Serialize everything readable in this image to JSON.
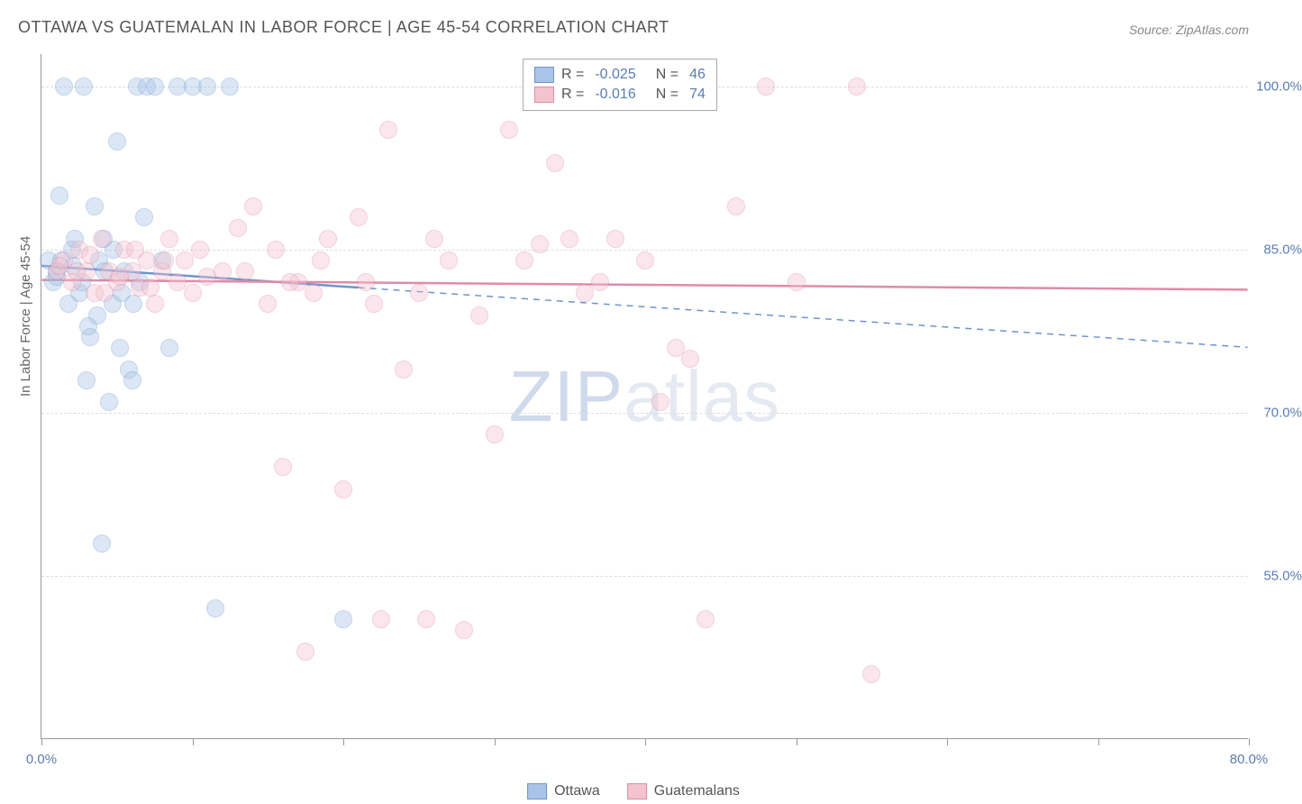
{
  "title": "OTTAWA VS GUATEMALAN IN LABOR FORCE | AGE 45-54 CORRELATION CHART",
  "source": "Source: ZipAtlas.com",
  "y_axis_label": "In Labor Force | Age 45-54",
  "watermark": "ZIPatlas",
  "chart": {
    "type": "scatter",
    "background_color": "#ffffff",
    "grid_color": "#dddddd",
    "axis_color": "#999999",
    "text_color": "#666666",
    "value_color": "#5b7db1",
    "title_fontsize": 18,
    "label_fontsize": 15,
    "legend_fontsize": 16,
    "marker_radius": 10,
    "marker_opacity": 0.4,
    "x_range": [
      0,
      80
    ],
    "y_range": [
      40,
      103
    ],
    "x_ticks": [
      0,
      10,
      20,
      30,
      40,
      50,
      60,
      70,
      80
    ],
    "x_tick_labels": {
      "0": "0.0%",
      "80": "80.0%"
    },
    "y_ticks": [
      55,
      70,
      85,
      100
    ],
    "y_tick_labels": {
      "55": "55.0%",
      "70": "70.0%",
      "85": "85.0%",
      "100": "100.0%"
    },
    "series": [
      {
        "name": "Ottawa",
        "color_fill": "#a9c4e8",
        "color_stroke": "#6d95cc",
        "R": "-0.025",
        "N": "46",
        "trend_solid": {
          "x1": 0,
          "y1": 83.5,
          "x2": 21,
          "y2": 81.5
        },
        "trend_dash": {
          "x1": 21,
          "y1": 81.5,
          "x2": 80,
          "y2": 76
        },
        "points": [
          [
            0.5,
            84
          ],
          [
            0.8,
            82
          ],
          [
            1,
            83
          ],
          [
            1.2,
            90
          ],
          [
            1.5,
            100
          ],
          [
            1.8,
            80
          ],
          [
            2,
            85
          ],
          [
            2.2,
            86
          ],
          [
            2.5,
            81
          ],
          [
            2.8,
            100
          ],
          [
            3,
            73
          ],
          [
            3.2,
            77
          ],
          [
            3.5,
            89
          ],
          [
            3.8,
            84
          ],
          [
            4,
            58
          ],
          [
            4.2,
            83
          ],
          [
            4.5,
            71
          ],
          [
            4.8,
            85
          ],
          [
            5,
            95
          ],
          [
            5.2,
            76
          ],
          [
            5.5,
            83
          ],
          [
            5.8,
            74
          ],
          [
            6,
            73
          ],
          [
            6.3,
            100
          ],
          [
            6.5,
            82
          ],
          [
            6.8,
            88
          ],
          [
            7,
            100
          ],
          [
            7.5,
            100
          ],
          [
            8,
            84
          ],
          [
            8.5,
            76
          ],
          [
            9,
            100
          ],
          [
            10,
            100
          ],
          [
            11,
            100
          ],
          [
            11.5,
            52
          ],
          [
            12.5,
            100
          ],
          [
            20,
            51
          ],
          [
            1,
            82.5
          ],
          [
            1.3,
            84
          ],
          [
            2.1,
            83.5
          ],
          [
            2.7,
            82
          ],
          [
            3.1,
            78
          ],
          [
            3.7,
            79
          ],
          [
            4.1,
            86
          ],
          [
            4.7,
            80
          ],
          [
            5.3,
            81
          ],
          [
            6.1,
            80
          ]
        ]
      },
      {
        "name": "Guatemalans",
        "color_fill": "#f4c3d0",
        "color_stroke": "#e08ba5",
        "R": "-0.016",
        "N": "74",
        "trend_solid": {
          "x1": 0,
          "y1": 82.2,
          "x2": 80,
          "y2": 81.3
        },
        "trend_dash": null,
        "points": [
          [
            1,
            83
          ],
          [
            1.5,
            84
          ],
          [
            2,
            82
          ],
          [
            2.5,
            85
          ],
          [
            3,
            83
          ],
          [
            3.5,
            81
          ],
          [
            4,
            86
          ],
          [
            4.5,
            83
          ],
          [
            5,
            82
          ],
          [
            5.5,
            85
          ],
          [
            6,
            83
          ],
          [
            6.5,
            81.5
          ],
          [
            7,
            84
          ],
          [
            7.5,
            80
          ],
          [
            8,
            83
          ],
          [
            8.5,
            86
          ],
          [
            9,
            82
          ],
          [
            9.5,
            84
          ],
          [
            10,
            81
          ],
          [
            10.5,
            85
          ],
          [
            11,
            82.5
          ],
          [
            12,
            83
          ],
          [
            13,
            87
          ],
          [
            14,
            89
          ],
          [
            15,
            80
          ],
          [
            15.5,
            85
          ],
          [
            16,
            65
          ],
          [
            17,
            82
          ],
          [
            17.5,
            48
          ],
          [
            18,
            81
          ],
          [
            19,
            86
          ],
          [
            20,
            63
          ],
          [
            21,
            88
          ],
          [
            22,
            80
          ],
          [
            22.5,
            51
          ],
          [
            23,
            96
          ],
          [
            24,
            74
          ],
          [
            25,
            81
          ],
          [
            25.5,
            51
          ],
          [
            26,
            86
          ],
          [
            27,
            84
          ],
          [
            28,
            50
          ],
          [
            29,
            79
          ],
          [
            30,
            68
          ],
          [
            31,
            96
          ],
          [
            32,
            84
          ],
          [
            33,
            85.5
          ],
          [
            34,
            93
          ],
          [
            35,
            86
          ],
          [
            36,
            81
          ],
          [
            37,
            82
          ],
          [
            38,
            86
          ],
          [
            40,
            84
          ],
          [
            41,
            71
          ],
          [
            42,
            76
          ],
          [
            43,
            75
          ],
          [
            44,
            51
          ],
          [
            46,
            89
          ],
          [
            48,
            100
          ],
          [
            50,
            82
          ],
          [
            54,
            100
          ],
          [
            55,
            46
          ],
          [
            1.2,
            83.5
          ],
          [
            2.3,
            83
          ],
          [
            3.2,
            84.5
          ],
          [
            4.2,
            81
          ],
          [
            5.2,
            82.5
          ],
          [
            6.2,
            85
          ],
          [
            7.2,
            81.5
          ],
          [
            8.2,
            84
          ],
          [
            13.5,
            83
          ],
          [
            16.5,
            82
          ],
          [
            18.5,
            84
          ],
          [
            21.5,
            82
          ]
        ]
      }
    ]
  },
  "stats_legend": {
    "r_label": "R =",
    "n_label": "N ="
  },
  "bottom_legend_labels": [
    "Ottawa",
    "Guatemalans"
  ]
}
